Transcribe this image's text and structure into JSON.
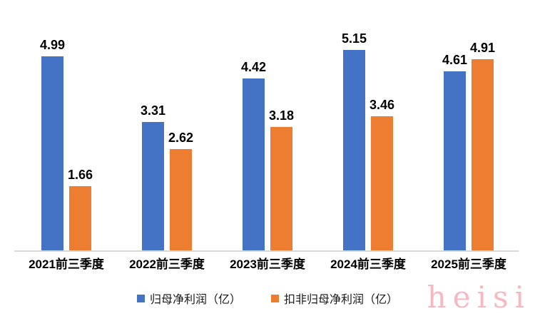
{
  "chart_data": {
    "type": "bar",
    "title": "",
    "xlabel": "",
    "ylabel": "",
    "categories": [
      "2021前三季度",
      "2022前三季度",
      "2023前三季度",
      "2024前三季度",
      "2025前三季度"
    ],
    "series": [
      {
        "name": "归母净利润（亿）",
        "color": "#4472C4",
        "values": [
          4.99,
          3.31,
          4.42,
          5.15,
          4.61
        ]
      },
      {
        "name": "扣非归母净利润（亿）",
        "color": "#ED7D31",
        "values": [
          1.66,
          2.62,
          3.18,
          3.46,
          4.91
        ]
      }
    ],
    "ylim": [
      0,
      6
    ],
    "grid": false,
    "legend_position": "bottom",
    "data_labels": true
  },
  "colors": {
    "axis_line": "#d9d9d9",
    "value_label_text": "#000000",
    "category_label_text": "#000000"
  },
  "watermark": {
    "text": "heisi",
    "color": "#f6b9c1"
  }
}
